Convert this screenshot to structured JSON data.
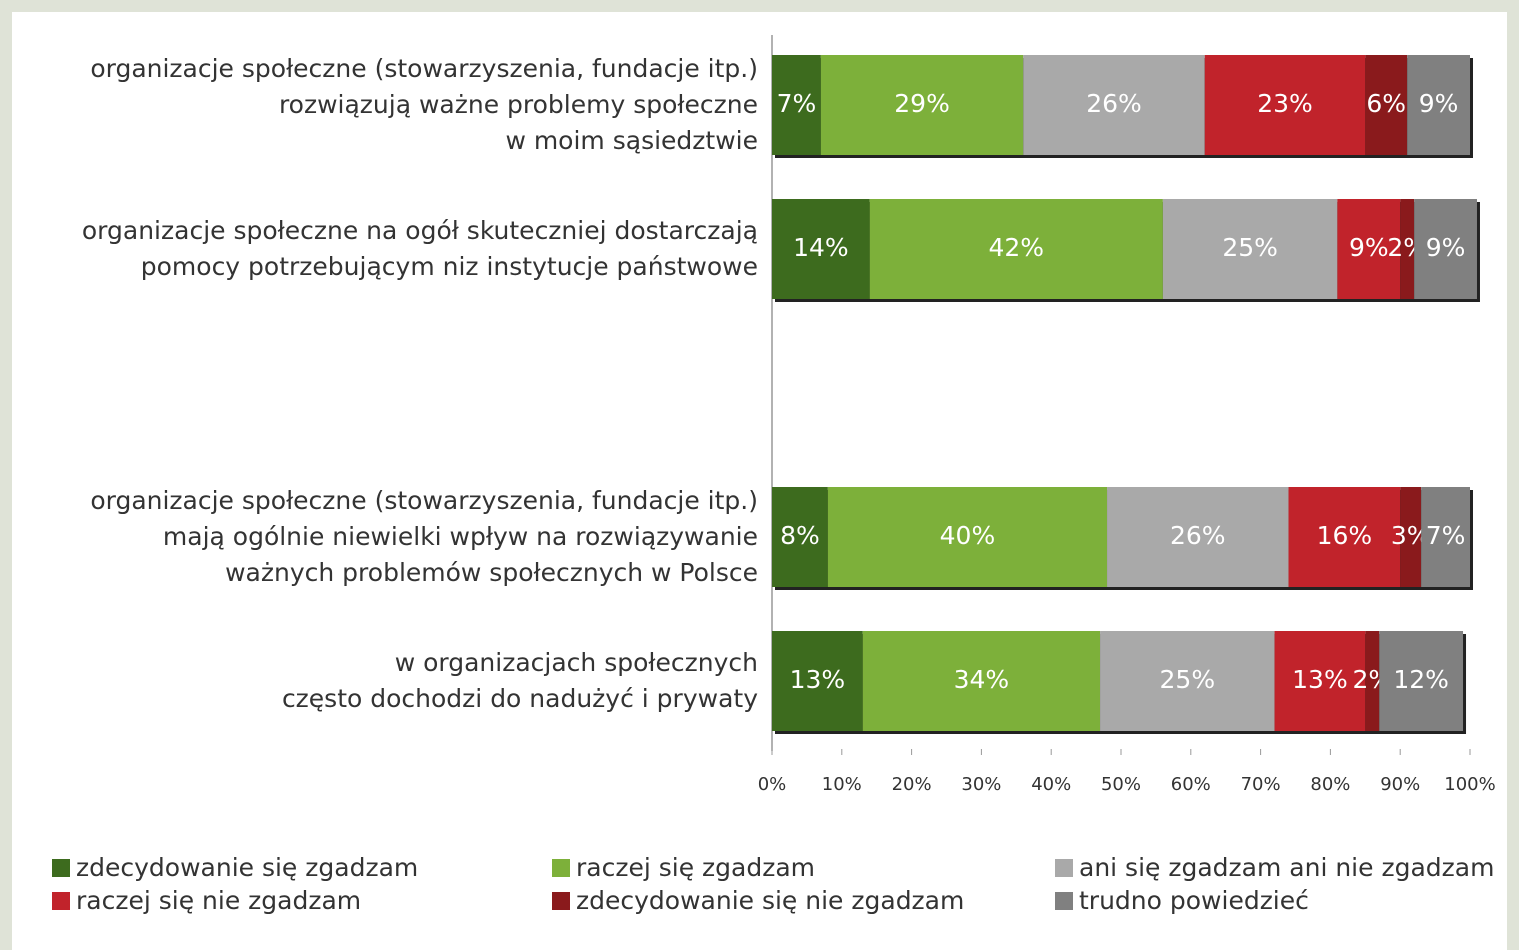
{
  "chart_data": {
    "type": "stacked-bar-horizontal",
    "categories": [
      "organizacje społeczne (stowarzyszenia, fundacje itp.)\nrozwiązują ważne problemy społeczne\nw moim sąsiedztwie",
      "organizacje społeczne na ogół skuteczniej dostarczają\npomocy potrzebującym niz instytucje państwowe",
      null,
      "organizacje społeczne (stowarzyszenia, fundacje itp.)\nmają ogólnie niewielki wpływ na rozwiązywanie\nważnych problemów społecznych w Polsce",
      "w organizacjach społecznych\nczęsto dochodzi do nadużyć i prywaty"
    ],
    "series": [
      {
        "name": "zdecydowanie się zgadzam",
        "color": "#3d6b1e",
        "values": [
          7,
          14,
          null,
          8,
          13
        ],
        "value_labels": [
          "7%",
          "14%",
          null,
          "8%",
          "13%"
        ]
      },
      {
        "name": "raczej się zgadzam",
        "color": "#7db03a",
        "values": [
          29,
          42,
          null,
          40,
          34
        ],
        "value_labels": [
          "29%",
          "42%",
          null,
          "40%",
          "34%"
        ]
      },
      {
        "name": "ani się zgadzam ani nie zgadzam",
        "color": "#a9a9a9",
        "values": [
          26,
          25,
          null,
          26,
          25
        ],
        "value_labels": [
          "26%",
          "25%",
          null,
          "26%",
          "25%"
        ]
      },
      {
        "name": "raczej się nie zgadzam",
        "color": "#c1232b",
        "values": [
          23,
          9,
          null,
          16,
          13
        ],
        "value_labels": [
          "23%",
          "9%",
          null,
          "16%",
          "13%"
        ]
      },
      {
        "name": "zdecydowanie się nie zgadzam",
        "color": "#8a1a1c",
        "values": [
          6,
          2,
          null,
          3,
          2
        ],
        "value_labels": [
          "6%",
          "2%",
          null,
          "3%",
          "2%"
        ]
      },
      {
        "name": "trudno powiedzieć",
        "color": "#808080",
        "values": [
          9,
          9,
          null,
          7,
          12
        ],
        "value_labels": [
          "9%",
          "9%",
          null,
          "7%",
          "12%"
        ]
      }
    ],
    "xlim": [
      0,
      100
    ],
    "xticks": [
      {
        "value": 0,
        "label": "0%"
      },
      {
        "value": 10,
        "label": "10%"
      },
      {
        "value": 20,
        "label": "20%"
      },
      {
        "value": 30,
        "label": "30%"
      },
      {
        "value": 40,
        "label": "40%"
      },
      {
        "value": 50,
        "label": "50%"
      },
      {
        "value": 60,
        "label": "60%"
      },
      {
        "value": 70,
        "label": "70%"
      },
      {
        "value": 80,
        "label": "80%"
      },
      {
        "value": 90,
        "label": "90%"
      },
      {
        "value": 100,
        "label": "100%"
      }
    ],
    "legend": "bottom"
  }
}
